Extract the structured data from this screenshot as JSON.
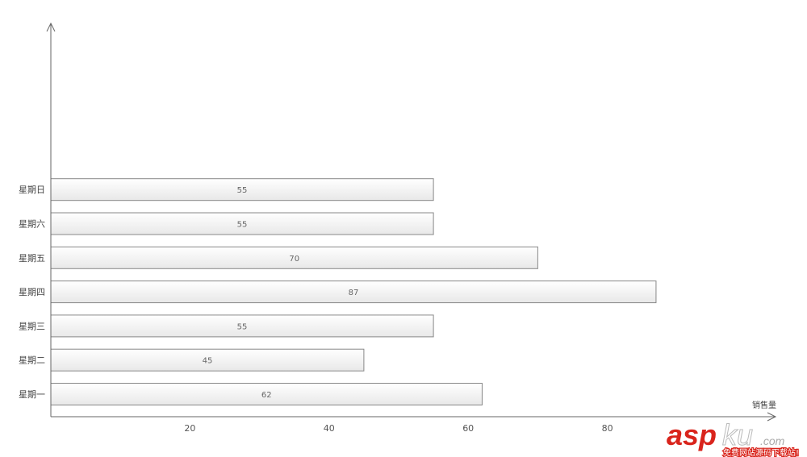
{
  "chart_data": {
    "type": "bar",
    "orientation": "horizontal",
    "categories": [
      "星期一",
      "星期二",
      "星期三",
      "星期四",
      "星期五",
      "星期六",
      "星期日"
    ],
    "values": [
      62,
      45,
      55,
      87,
      70,
      55,
      55
    ],
    "xlabel": "销售量",
    "ylabel": "",
    "xlim": [
      0,
      104
    ],
    "xticks": [
      20,
      40,
      60,
      80
    ],
    "grid": false,
    "data_labels": true,
    "colors": {
      "bar_fill_top": "#ffffff",
      "bar_fill_bottom": "#e8e8e8",
      "bar_stroke": "#888888",
      "axis": "#666666"
    }
  },
  "watermark": {
    "brand": "aspku",
    "domain": ".com",
    "tagline": "免费网站源码下载站!"
  }
}
